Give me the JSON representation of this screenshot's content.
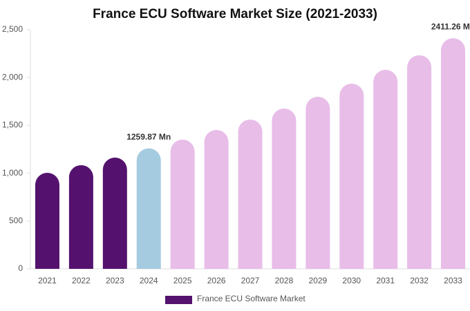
{
  "chart_data": {
    "type": "bar",
    "title": "France ECU Software Market Size (2021-2033)",
    "categories": [
      "2021",
      "2022",
      "2023",
      "2024",
      "2025",
      "2026",
      "2027",
      "2028",
      "2029",
      "2030",
      "2031",
      "2032",
      "2033"
    ],
    "series": [
      {
        "name": "France ECU Software Market",
        "color": "#54126e",
        "values": [
          1004,
          1084,
          1163,
          1259.87,
          1351,
          1452,
          1561,
          1676,
          1799,
          1936,
          2081,
          2233,
          2411.26
        ],
        "value_labels": [
          null,
          null,
          null,
          "1259.87 Mn",
          null,
          null,
          null,
          null,
          null,
          null,
          null,
          null,
          "2411.26 Mn"
        ],
        "bar_colors": [
          "#54126e",
          "#54126e",
          "#54126e",
          "#a5cbe0",
          "#e8bde8",
          "#e8bde8",
          "#e8bde8",
          "#e8bde8",
          "#e8bde8",
          "#e8bde8",
          "#e8bde8",
          "#e8bde8",
          "#e8bde8"
        ]
      }
    ],
    "ylim": [
      0,
      2500
    ],
    "yticks": [
      0,
      500,
      {
        "value": 1000,
        "label": "1,000"
      },
      {
        "value": 1500,
        "label": "1,500"
      },
      {
        "value": 2000,
        "label": "2,000"
      },
      {
        "value": 2500,
        "label": "2,500"
      }
    ],
    "grid": false
  }
}
